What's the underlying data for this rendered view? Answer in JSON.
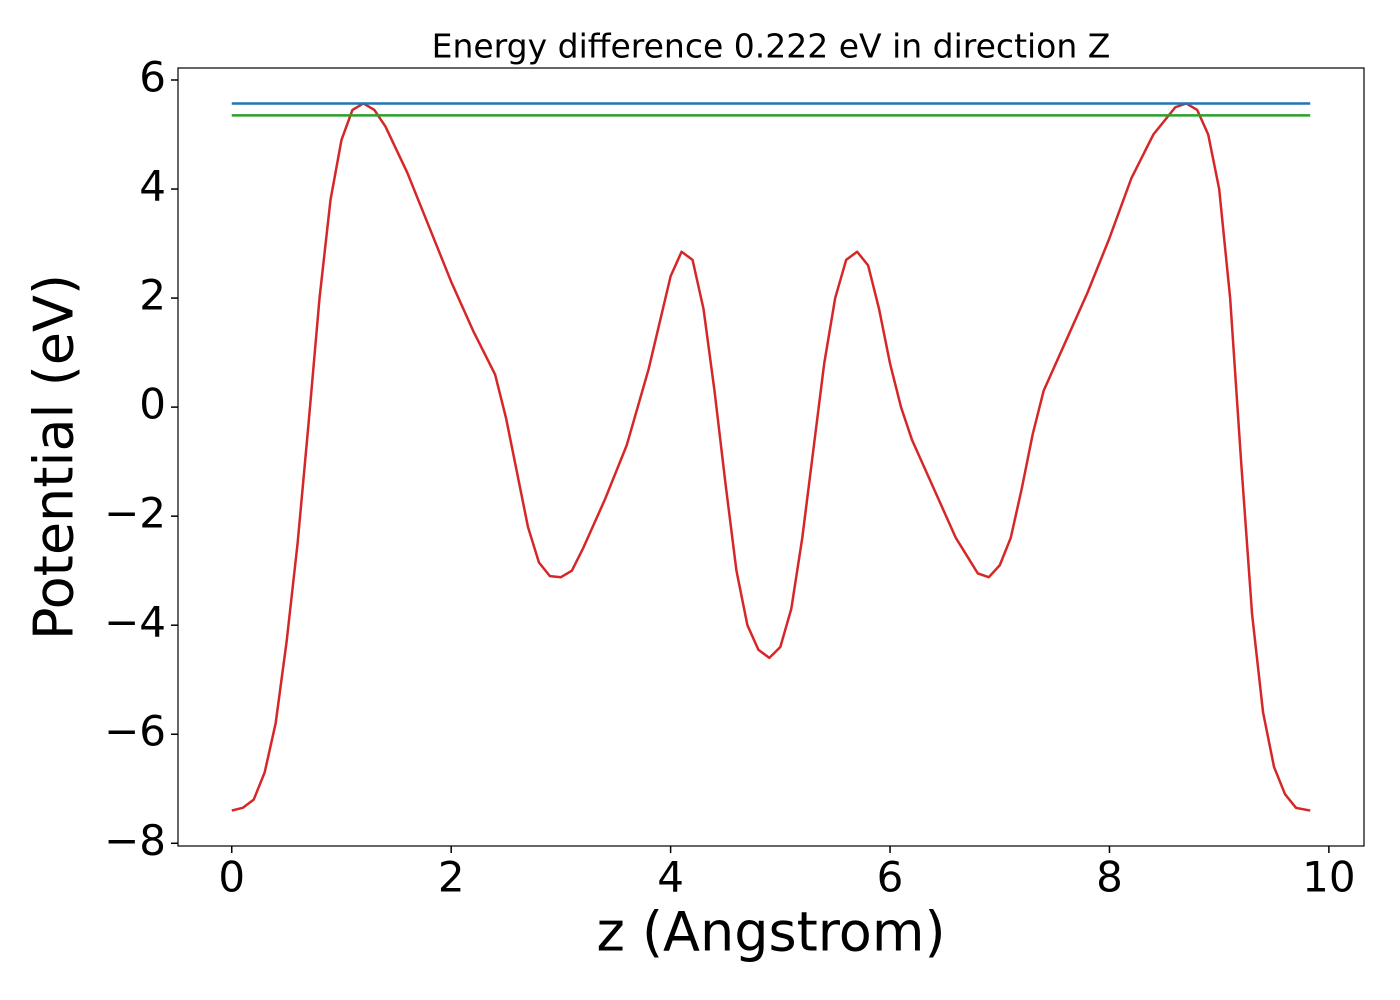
{
  "chart_data": {
    "type": "line",
    "title": "Energy difference 0.222 eV in direction Z",
    "xlabel": "z (Angstrom)",
    "ylabel": "Potential (eV)",
    "series": [
      {
        "color": "#d62728",
        "x": [
          0,
          0.1,
          0.2,
          0.3,
          0.4,
          0.5,
          0.6,
          0.7,
          0.8,
          0.9,
          1.0,
          1.1,
          1.2,
          1.3,
          1.4,
          1.6,
          1.8,
          2.0,
          2.2,
          2.4,
          2.5,
          2.6,
          2.7,
          2.8,
          2.9,
          3.0,
          3.1,
          3.2,
          3.4,
          3.6,
          3.8,
          4.0,
          4.1,
          4.2,
          4.3,
          4.4,
          4.5,
          4.6,
          4.7,
          4.8,
          4.9,
          5.0,
          5.1,
          5.2,
          5.3,
          5.4,
          5.5,
          5.6,
          5.7,
          5.8,
          5.9,
          6.0,
          6.1,
          6.2,
          6.4,
          6.6,
          6.8,
          6.9,
          7.0,
          7.1,
          7.2,
          7.3,
          7.4,
          7.6,
          7.8,
          8.0,
          8.2,
          8.4,
          8.6,
          8.7,
          8.8,
          8.9,
          9.0,
          9.1,
          9.2,
          9.3,
          9.4,
          9.5,
          9.6,
          9.7,
          9.83
        ],
        "values": [
          -7.4,
          -7.35,
          -7.2,
          -6.7,
          -5.8,
          -4.3,
          -2.5,
          -0.3,
          2.0,
          3.8,
          4.9,
          5.45,
          5.57,
          5.45,
          5.15,
          4.3,
          3.3,
          2.3,
          1.4,
          0.6,
          -0.2,
          -1.2,
          -2.2,
          -2.85,
          -3.1,
          -3.12,
          -3.0,
          -2.6,
          -1.7,
          -0.7,
          0.7,
          2.4,
          2.85,
          2.7,
          1.8,
          0.3,
          -1.4,
          -3.0,
          -4.0,
          -4.45,
          -4.6,
          -4.4,
          -3.7,
          -2.4,
          -0.8,
          0.8,
          2.0,
          2.7,
          2.85,
          2.6,
          1.8,
          0.8,
          0.0,
          -0.6,
          -1.5,
          -2.4,
          -3.05,
          -3.12,
          -2.9,
          -2.4,
          -1.5,
          -0.5,
          0.3,
          1.2,
          2.1,
          3.1,
          4.2,
          5.0,
          5.5,
          5.57,
          5.45,
          5.0,
          4.0,
          2.0,
          -1.0,
          -3.8,
          -5.6,
          -6.6,
          -7.1,
          -7.35,
          -7.4
        ]
      },
      {
        "color": "#1f77b4",
        "x": [
          0,
          9.83
        ],
        "values": [
          5.57,
          5.57
        ]
      },
      {
        "color": "#2ca02c",
        "x": [
          0,
          9.83
        ],
        "values": [
          5.35,
          5.35
        ]
      }
    ],
    "xlim": [
      -0.49,
      10.32
    ],
    "ylim": [
      -8.05,
      6.22
    ],
    "xticks": [
      0,
      2,
      4,
      6,
      8,
      10
    ],
    "yticks": [
      {
        "value": -8,
        "label": "−8"
      },
      {
        "value": -6,
        "label": "−6"
      },
      {
        "value": -4,
        "label": "−4"
      },
      {
        "value": -2,
        "label": "−2"
      },
      0,
      2,
      4,
      6
    ]
  }
}
